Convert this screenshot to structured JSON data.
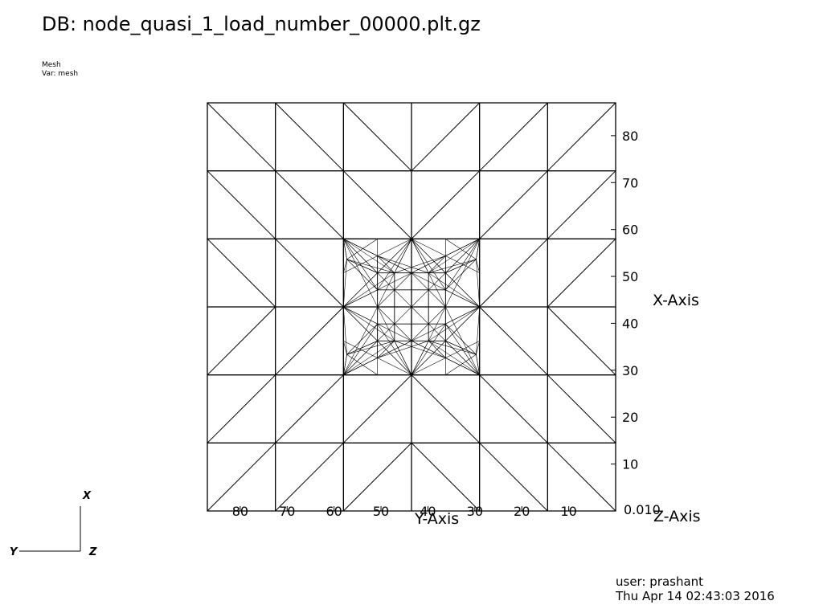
{
  "db_title": "DB: node_quasi_1_load_number_00000.plt.gz",
  "plot_info": {
    "plot_type": "Mesh",
    "variable": "Var: mesh"
  },
  "axes": {
    "x_axis_label": "X-Axis",
    "y_axis_label": "Y-Axis",
    "z_axis_label": "Z-Axis",
    "x_ticks": [
      "0",
      "10",
      "20",
      "30",
      "40",
      "50",
      "60",
      "70",
      "80"
    ],
    "y_ticks": [
      "0",
      "10",
      "20",
      "30",
      "40",
      "50",
      "60",
      "70",
      "80"
    ],
    "z_ticks_overlapped": "0.010"
  },
  "triad": {
    "x": "X",
    "y": "Y",
    "z": "Z"
  },
  "user": {
    "name": "user: prashant",
    "timestamp": "Thu Apr 14 02:43:03 2016"
  },
  "colors": {
    "background": "#ffffff",
    "mesh": "#000000"
  }
}
